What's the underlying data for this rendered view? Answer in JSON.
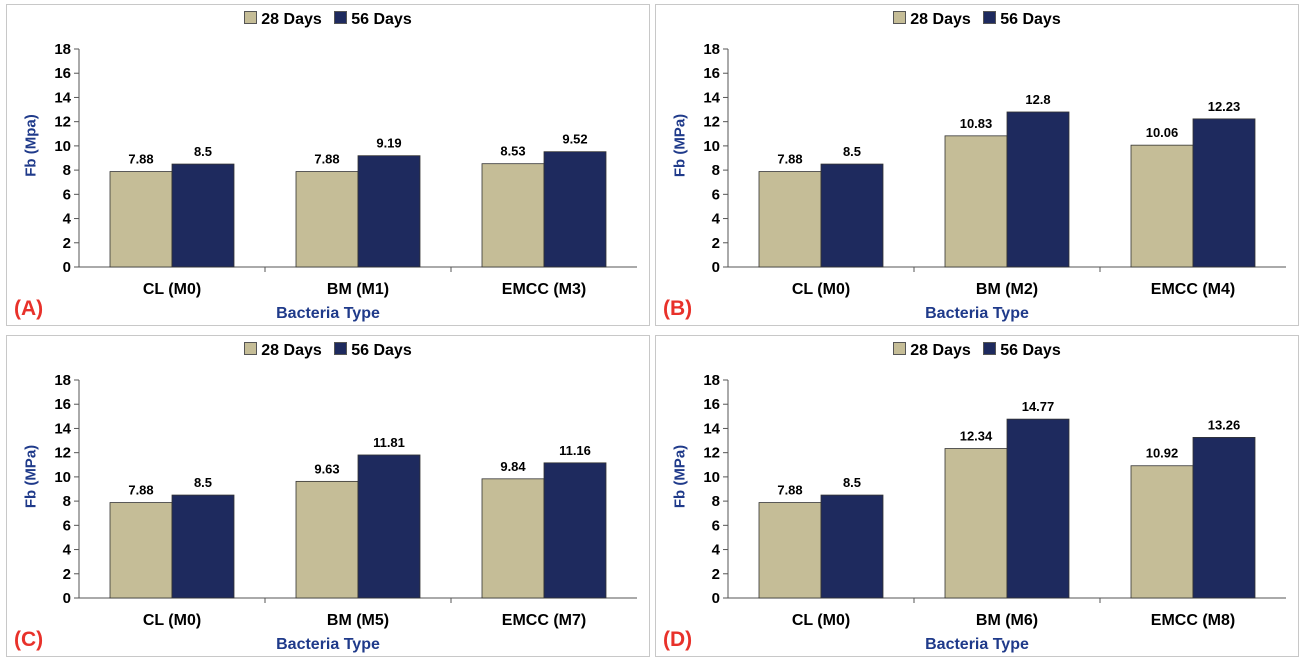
{
  "colors": {
    "series1": "#c5bd97",
    "series2": "#1e2a5e",
    "axis_label": "#1f3a8a",
    "panel_tag": "#e8312a"
  },
  "chart_data": [
    {
      "type": "bar",
      "panel_label": "(A)",
      "categories": [
        "CL (M0)",
        "BM (M1)",
        "EMCC (M3)"
      ],
      "series": [
        {
          "name": "28 Days",
          "values": [
            7.88,
            7.88,
            8.53
          ]
        },
        {
          "name": "56 Days",
          "values": [
            8.5,
            9.19,
            9.52
          ]
        }
      ],
      "xlabel": "Bacteria Type",
      "ylabel": "Fb (Mpa)",
      "ylim": [
        0,
        18
      ],
      "yticks": [
        0,
        2,
        4,
        6,
        8,
        10,
        12,
        14,
        16,
        18
      ],
      "legend": "top-center",
      "grid": false
    },
    {
      "type": "bar",
      "panel_label": "(B)",
      "categories": [
        "CL (M0)",
        "BM (M2)",
        "EMCC (M4)"
      ],
      "series": [
        {
          "name": "28 Days",
          "values": [
            7.88,
            10.83,
            10.06
          ]
        },
        {
          "name": "56 Days",
          "values": [
            8.5,
            12.8,
            12.23
          ]
        }
      ],
      "xlabel": "Bacteria Type",
      "ylabel": "Fb (MPa)",
      "ylim": [
        0,
        18
      ],
      "yticks": [
        0,
        2,
        4,
        6,
        8,
        10,
        12,
        14,
        16,
        18
      ],
      "legend": "top-center",
      "grid": false
    },
    {
      "type": "bar",
      "panel_label": "(C)",
      "categories": [
        "CL (M0)",
        "BM (M5)",
        "EMCC (M7)"
      ],
      "series": [
        {
          "name": "28 Days",
          "values": [
            7.88,
            9.63,
            9.84
          ]
        },
        {
          "name": "56 Days",
          "values": [
            8.5,
            11.81,
            11.16
          ]
        }
      ],
      "xlabel": "Bacteria Type",
      "ylabel": "Fb (MPa)",
      "ylim": [
        0,
        18
      ],
      "yticks": [
        0,
        2,
        4,
        6,
        8,
        10,
        12,
        14,
        16,
        18
      ],
      "legend": "top-center",
      "grid": false
    },
    {
      "type": "bar",
      "panel_label": "(D)",
      "categories": [
        "CL (M0)",
        "BM (M6)",
        "EMCC (M8)"
      ],
      "series": [
        {
          "name": "28 Days",
          "values": [
            7.88,
            12.34,
            10.92
          ]
        },
        {
          "name": "56 Days",
          "values": [
            8.5,
            14.77,
            13.26
          ]
        }
      ],
      "xlabel": "Bacteria Type",
      "ylabel": "Fb (MPa)",
      "ylim": [
        0,
        18
      ],
      "yticks": [
        0,
        2,
        4,
        6,
        8,
        10,
        12,
        14,
        16,
        18
      ],
      "legend": "top-center",
      "grid": false
    }
  ]
}
